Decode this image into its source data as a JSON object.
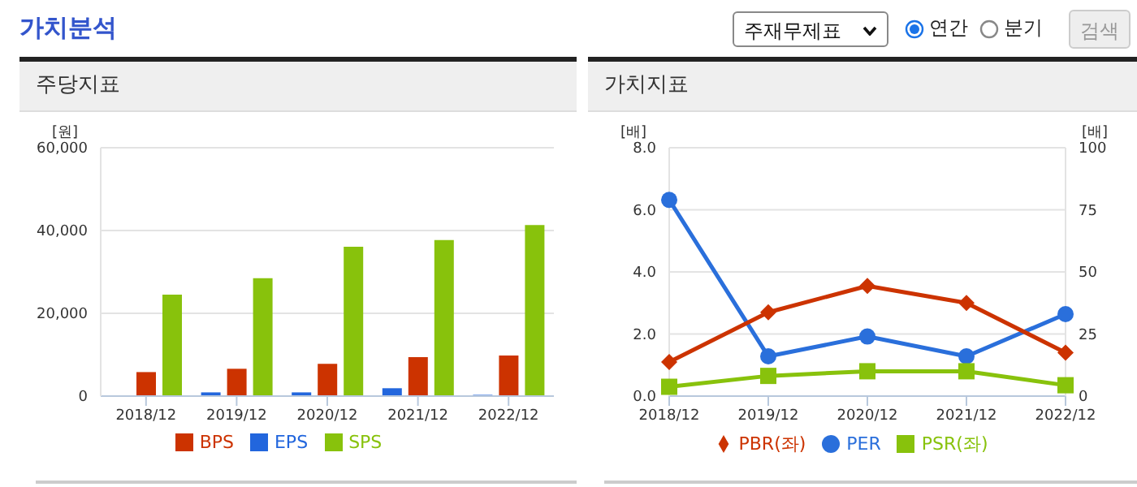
{
  "chart_data": [
    {
      "type": "other",
      "title": "가치분석",
      "annotations": [
        "주재무제표",
        "연간",
        "분기",
        "검색"
      ]
    },
    {
      "type": "bar",
      "title": "주당지표",
      "ylabel": "[원]",
      "categories": [
        "2018/12",
        "2019/12",
        "2020/12",
        "2021/12",
        "2022/12"
      ],
      "series": [
        {
          "name": "EPS",
          "color": "#2266dd",
          "values": [
            0,
            900,
            900,
            1900,
            300
          ]
        },
        {
          "name": "BPS",
          "color": "#cc3300",
          "values": [
            5800,
            6600,
            7800,
            9400,
            9800
          ]
        },
        {
          "name": "SPS",
          "color": "#88c20c",
          "values": [
            24500,
            28500,
            36100,
            37700,
            41300
          ]
        }
      ],
      "ylim": [
        0,
        60000
      ],
      "yticks": [
        0,
        {
          "value": 20000,
          "label": "20,000"
        },
        {
          "value": 40000,
          "label": "40,000"
        },
        {
          "value": 60000,
          "label": "60,000"
        }
      ],
      "grid": "y",
      "legend": "bottom"
    },
    {
      "type": "line",
      "title": "가치지표",
      "ylabel": "[배]",
      "y2label": "[배]",
      "categories": [
        "2018/12",
        "2019/12",
        "2020/12",
        "2021/12",
        "2022/12"
      ],
      "series": [
        {
          "name": "PER",
          "color": "#2a6fdb",
          "axis": "y2",
          "marker": "circle",
          "values": [
            79,
            16,
            24,
            16,
            33
          ]
        },
        {
          "name": "PBR(좌)",
          "color": "#cc3300",
          "marker": "diamond",
          "values": [
            1.1,
            2.7,
            3.55,
            3.0,
            1.4
          ]
        },
        {
          "name": "PSR(좌)",
          "color": "#88c20c",
          "marker": "square",
          "values": [
            0.3,
            0.65,
            0.8,
            0.8,
            0.35
          ]
        }
      ],
      "ylim": [
        0,
        8
      ],
      "yticks": [
        {
          "value": 0,
          "label": "0.0"
        },
        {
          "value": 2,
          "label": "2.0"
        },
        {
          "value": 4,
          "label": "4.0"
        },
        {
          "value": 6,
          "label": "6.0"
        },
        {
          "value": 8,
          "label": "8.0"
        }
      ],
      "y2lim": [
        0,
        100
      ],
      "y2ticks": [
        0,
        25,
        50,
        75,
        100
      ],
      "grid": "y",
      "legend": "bottom"
    }
  ]
}
